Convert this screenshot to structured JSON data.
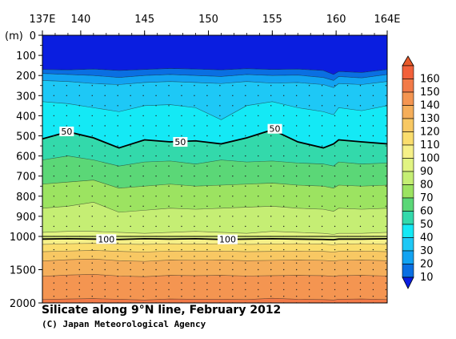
{
  "chart_data": {
    "type": "heatmap",
    "title": "Silicate along 9°N line, February 2012",
    "credit": "(C) Japan Meteorological Agency",
    "x_ticks": [
      "137E",
      "140",
      "145",
      "150",
      "155",
      "160",
      "164E"
    ],
    "x_tick_values": [
      137,
      140,
      145,
      150,
      155,
      160,
      164
    ],
    "xlim": [
      137,
      164
    ],
    "y_unit_label": "(m)",
    "y_ticks": [
      "0",
      "100",
      "200",
      "300",
      "400",
      "500",
      "600",
      "700",
      "800",
      "900",
      "1000",
      "1500",
      "2000"
    ],
    "y_tick_values": [
      0,
      100,
      200,
      300,
      400,
      500,
      600,
      700,
      800,
      900,
      1000,
      1500,
      2000
    ],
    "ylim": [
      0,
      2000
    ],
    "y_scale": "piecewise: linear 0-1000 m upper panel, compressed linear 1000-2000 m lower panel",
    "contour_labels": [
      {
        "text": "50",
        "x": 138.9,
        "depth": 478
      },
      {
        "text": "50",
        "x": 147.8,
        "depth": 530
      },
      {
        "text": "50",
        "x": 155.2,
        "depth": 465
      },
      {
        "text": "100",
        "x": 142.0,
        "depth": 1040
      },
      {
        "text": "100",
        "x": 151.5,
        "depth": 1045
      }
    ],
    "station_longitudes": [
      137.9,
      138.9,
      139.9,
      140.9,
      141.9,
      142.9,
      143.9,
      144.9,
      145.9,
      146.9,
      147.9,
      148.9,
      149.9,
      150.9,
      151.9,
      152.9,
      153.9,
      154.9,
      155.9,
      156.9,
      157.9,
      158.9,
      159.9,
      160.9,
      161.9,
      162.9,
      163.9
    ],
    "contour_levels": [
      10,
      20,
      30,
      40,
      50,
      60,
      70,
      80,
      90,
      100,
      110,
      120,
      130,
      140,
      150,
      160
    ],
    "contour_depths": {
      "longitudes": [
        137,
        139,
        141,
        143,
        145,
        147,
        149,
        151,
        153,
        155,
        157,
        159,
        159.8,
        160.2,
        162,
        164
      ],
      "levels": [
        {
          "value": 10,
          "depths": [
            170,
            172,
            168,
            175,
            170,
            165,
            168,
            172,
            166,
            170,
            168,
            175,
            195,
            180,
            185,
            170
          ]
        },
        {
          "value": 20,
          "depths": [
            190,
            195,
            200,
            210,
            200,
            195,
            200,
            205,
            195,
            200,
            198,
            210,
            225,
            205,
            212,
            195
          ]
        },
        {
          "value": 30,
          "depths": [
            225,
            230,
            240,
            245,
            235,
            230,
            235,
            240,
            230,
            238,
            235,
            245,
            260,
            240,
            245,
            230
          ]
        },
        {
          "value": 40,
          "depths": [
            330,
            340,
            360,
            380,
            350,
            345,
            360,
            420,
            350,
            330,
            360,
            380,
            395,
            360,
            375,
            350
          ]
        },
        {
          "value": 50,
          "depths": [
            515,
            480,
            510,
            560,
            520,
            530,
            525,
            540,
            510,
            470,
            530,
            560,
            540,
            520,
            530,
            540
          ]
        },
        {
          "value": 60,
          "depths": [
            620,
            600,
            620,
            650,
            630,
            625,
            640,
            620,
            630,
            625,
            635,
            640,
            650,
            630,
            640,
            635
          ]
        },
        {
          "value": 70,
          "depths": [
            740,
            730,
            720,
            760,
            750,
            740,
            750,
            745,
            740,
            735,
            745,
            750,
            760,
            745,
            750,
            745
          ]
        },
        {
          "value": 80,
          "depths": [
            860,
            850,
            830,
            880,
            870,
            860,
            865,
            860,
            855,
            850,
            860,
            865,
            875,
            860,
            865,
            860
          ]
        },
        {
          "value": 90,
          "depths": [
            980,
            975,
            975,
            980,
            985,
            980,
            975,
            980,
            985,
            975,
            980,
            985,
            990,
            985,
            985,
            980
          ]
        },
        {
          "value": 100,
          "depths": [
            1040,
            1035,
            1040,
            1045,
            1035,
            1040,
            1035,
            1045,
            1040,
            1035,
            1040,
            1045,
            1050,
            1040,
            1040,
            1035
          ]
        },
        {
          "value": 110,
          "depths": [
            1120,
            1110,
            1105,
            1115,
            1120,
            1110,
            1115,
            1110,
            1120,
            1115,
            1110,
            1115,
            1125,
            1115,
            1110,
            1120
          ]
        },
        {
          "value": 120,
          "depths": [
            1230,
            1220,
            1210,
            1225,
            1235,
            1220,
            1225,
            1220,
            1230,
            1225,
            1220,
            1225,
            1235,
            1225,
            1220,
            1230
          ]
        },
        {
          "value": 130,
          "depths": [
            1370,
            1350,
            1340,
            1365,
            1375,
            1355,
            1360,
            1355,
            1365,
            1360,
            1355,
            1360,
            1370,
            1360,
            1355,
            1365
          ]
        },
        {
          "value": 140,
          "depths": [
            1600,
            1580,
            1570,
            1595,
            1605,
            1585,
            1590,
            1585,
            1595,
            1590,
            1585,
            1590,
            1600,
            1590,
            1585,
            1595
          ]
        },
        {
          "value": 150,
          "depths": [
            1950,
            1940,
            1935,
            1945,
            1955,
            1940,
            1945,
            1945,
            1950,
            1930,
            1945,
            1950,
            1955,
            1945,
            1940,
            1950
          ]
        }
      ]
    },
    "colorbar": {
      "labels": [
        "160",
        "150",
        "140",
        "130",
        "120",
        "110",
        "100",
        "90",
        "80",
        "70",
        "60",
        "50",
        "40",
        "30",
        "20",
        "10"
      ],
      "colors": [
        "#f2603a",
        "#f27a48",
        "#f49551",
        "#f5ae5a",
        "#f8c863",
        "#fadd6d",
        "#f6f088",
        "#e1f482",
        "#c5ee74",
        "#9ce361",
        "#5bd777",
        "#33d9ab",
        "#14e9f5",
        "#1ec8f6",
        "#12a3f2",
        "#0a6fe2"
      ],
      "deepest_color": "#0a1ee0",
      "highest_color": "#e85a2a"
    }
  }
}
